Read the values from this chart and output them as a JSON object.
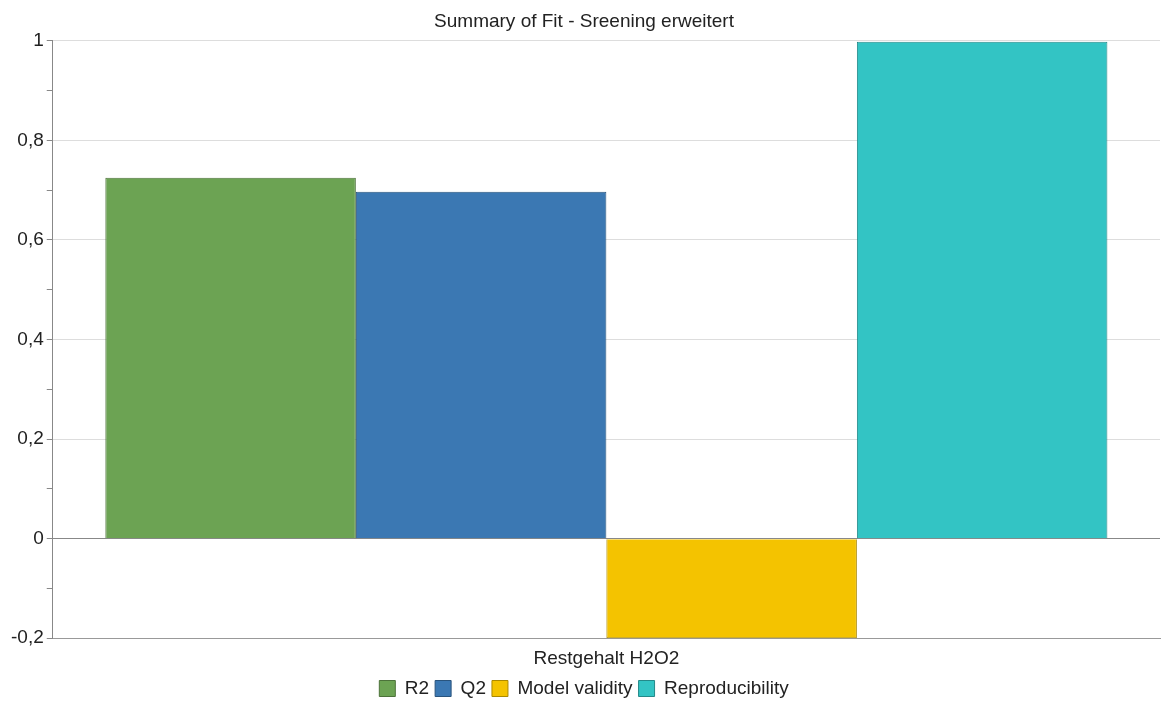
{
  "chart_data": {
    "type": "bar",
    "title": "Summary of Fit - Sreening erweitert",
    "categories": [
      "Restgehalt H2O2"
    ],
    "series": [
      {
        "name": "R2",
        "color": "#6ca353",
        "values": [
          0.725
        ]
      },
      {
        "name": "Q2",
        "color": "#3b78b3",
        "values": [
          0.697
        ]
      },
      {
        "name": "Model validity",
        "color": "#f4c300",
        "values": [
          -0.2
        ]
      },
      {
        "name": "Reproducibility",
        "color": "#33c4c4",
        "values": [
          0.998
        ]
      }
    ],
    "ylim": [
      -0.2,
      1
    ],
    "yticks": [
      {
        "value": -0.2,
        "label": "-0,2"
      },
      {
        "value": -0.1,
        "label": null
      },
      {
        "value": 0,
        "label": "0"
      },
      {
        "value": 0.1,
        "label": null
      },
      {
        "value": 0.2,
        "label": "0,2"
      },
      {
        "value": 0.3,
        "label": null
      },
      {
        "value": 0.4,
        "label": "0,4"
      },
      {
        "value": 0.5,
        "label": null
      },
      {
        "value": 0.6,
        "label": "0,6"
      },
      {
        "value": 0.7,
        "label": null
      },
      {
        "value": 0.8,
        "label": "0,8"
      },
      {
        "value": 0.9,
        "label": null
      },
      {
        "value": 1,
        "label": "1"
      }
    ],
    "grid": "y",
    "legend": "bottom"
  }
}
